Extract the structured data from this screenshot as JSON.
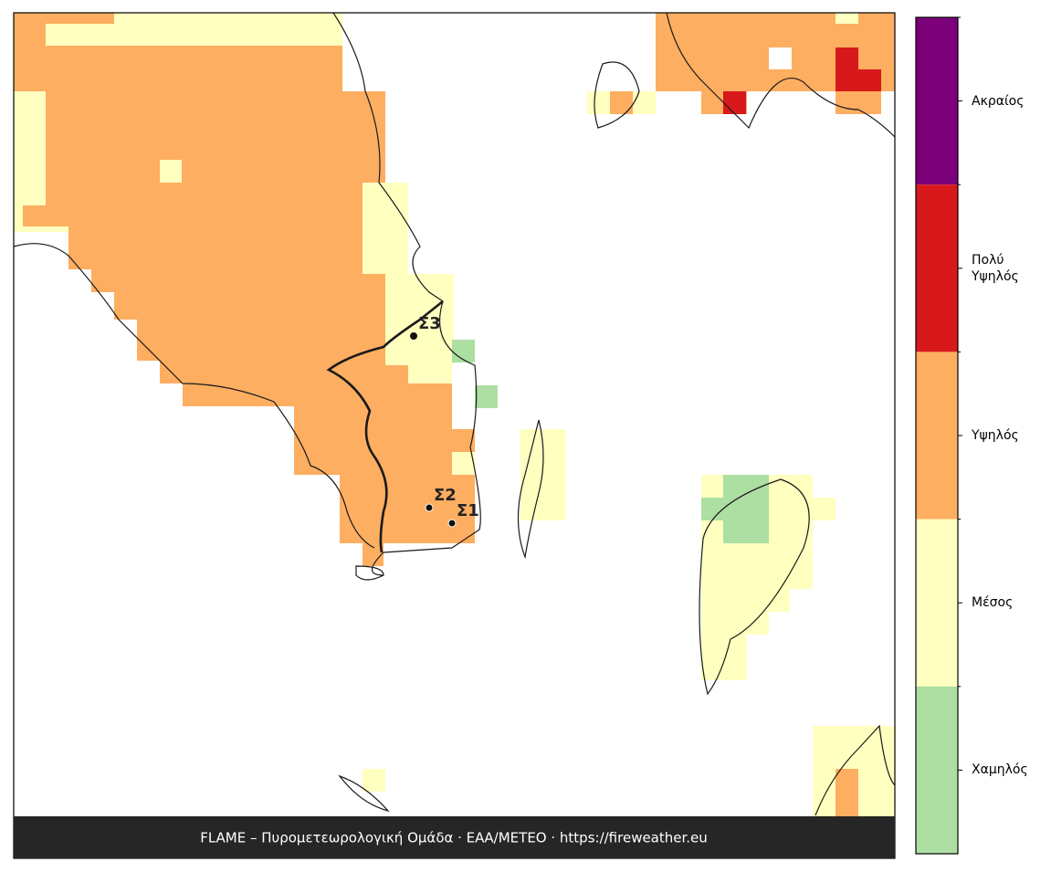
{
  "map": {
    "stations": [
      {
        "label": "Σ3"
      },
      {
        "label": "Σ2"
      },
      {
        "label": "Σ1"
      }
    ]
  },
  "legend": {
    "levels": [
      {
        "label": "Ακραίος",
        "color": "#7b0079"
      },
      {
        "label": "Πολύ\nΥψηλός",
        "color": "#d7191c"
      },
      {
        "label": "Υψηλός",
        "color": "#fdae61"
      },
      {
        "label": "Μέσος",
        "color": "#ffffc0"
      },
      {
        "label": "Χαμηλός",
        "color": "#addfa2"
      }
    ]
  },
  "footer": "FLAME – Πυρομετεωρολογική Ομάδα · ΕΑΑ/METEO · https://fireweather.eu"
}
